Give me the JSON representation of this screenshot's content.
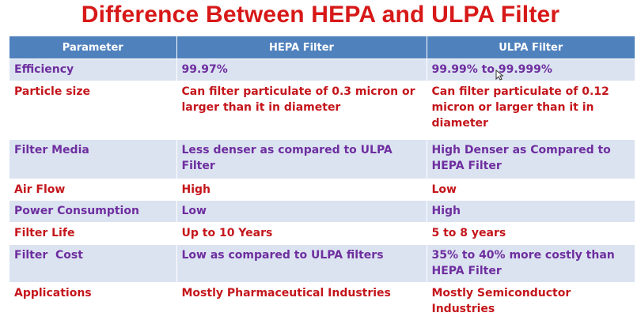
{
  "title": "Difference Between HEPA and ULPA Filter",
  "headers": [
    "Parameter",
    "HEPA Filter",
    "ULPA Filter"
  ],
  "rows": [
    {
      "parameter": "Efficiency",
      "hepa": "99.97%",
      "ulpa": "99.99% to 99.999%"
    },
    {
      "parameter": "Particle size",
      "hepa": "Can filter particulate of 0.3 micron or larger than it in diameter",
      "ulpa": "Can filter particulate of 0.12 micron or larger than it in diameter"
    },
    {
      "parameter": "Filter Media",
      "hepa": "Less denser as compared to ULPA Filter",
      "ulpa": "High Denser as Compared to HEPA Filter"
    },
    {
      "parameter": "Air Flow",
      "hepa": "High",
      "ulpa": "Low"
    },
    {
      "parameter": "Power Consumption",
      "hepa": "Low",
      "ulpa": "High"
    },
    {
      "parameter": "Filter Life",
      "hepa": "Up to 10 Years",
      "ulpa": "5 to 8 years"
    },
    {
      "parameter": "Filter  Cost",
      "hepa": "Low as compared to ULPA filters",
      "ulpa": "35%  to 40% more costly than HEPA Filter"
    },
    {
      "parameter": "Applications",
      "hepa": "Mostly Pharmaceutical Industries",
      "ulpa": "Mostly Semiconductor Industries"
    }
  ],
  "colors": {
    "title": "#d71818",
    "header_bg": "#4f81bd",
    "row_band": "#dbe3f1",
    "purple_text": "#6e2e9f",
    "red_text": "#c4161c"
  },
  "icons": {
    "pointer": "mouse-pointer-icon"
  }
}
